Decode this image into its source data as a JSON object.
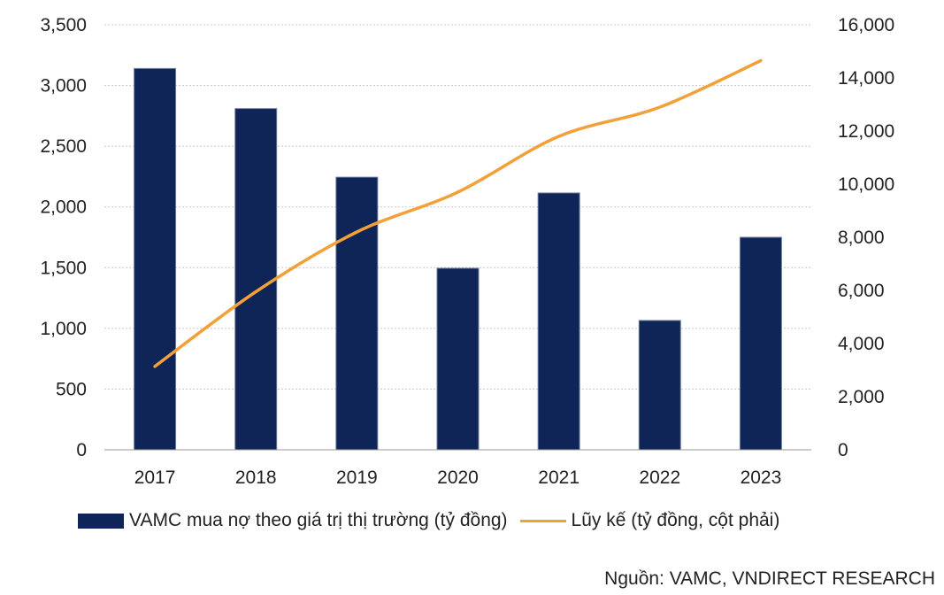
{
  "chart_data": {
    "type": "bar+line",
    "categories": [
      "2017",
      "2018",
      "2019",
      "2020",
      "2021",
      "2022",
      "2023"
    ],
    "series": [
      {
        "name": "VAMC mua nợ theo giá trị thị trường (tỷ đồng)",
        "type": "bar",
        "axis": "left",
        "values": [
          3140,
          2810,
          2245,
          1495,
          2115,
          1065,
          1750
        ]
      },
      {
        "name": "Lũy kế (tỷ đồng, cột phải)",
        "type": "line",
        "axis": "right",
        "values": [
          3140,
          5950,
          8200,
          9700,
          11800,
          12900,
          14650
        ]
      }
    ],
    "y_left": {
      "ylim": [
        0,
        3500
      ],
      "ticks": [
        "0",
        "500",
        "1,000",
        "1,500",
        "2,000",
        "2,500",
        "3,000",
        "3,500"
      ]
    },
    "y_right": {
      "ylim": [
        0,
        16000
      ],
      "ticks": [
        "0",
        "2,000",
        "4,000",
        "6,000",
        "8,000",
        "10,000",
        "12,000",
        "14,000",
        "16,000"
      ]
    },
    "grid": true,
    "legend_position": "bottom",
    "colors": {
      "bar": "#0f2558",
      "line": "#f2a03a",
      "grid": "#c8c8c8"
    }
  },
  "source_note": "Nguồn: VAMC, VNDIRECT RESEARCH"
}
